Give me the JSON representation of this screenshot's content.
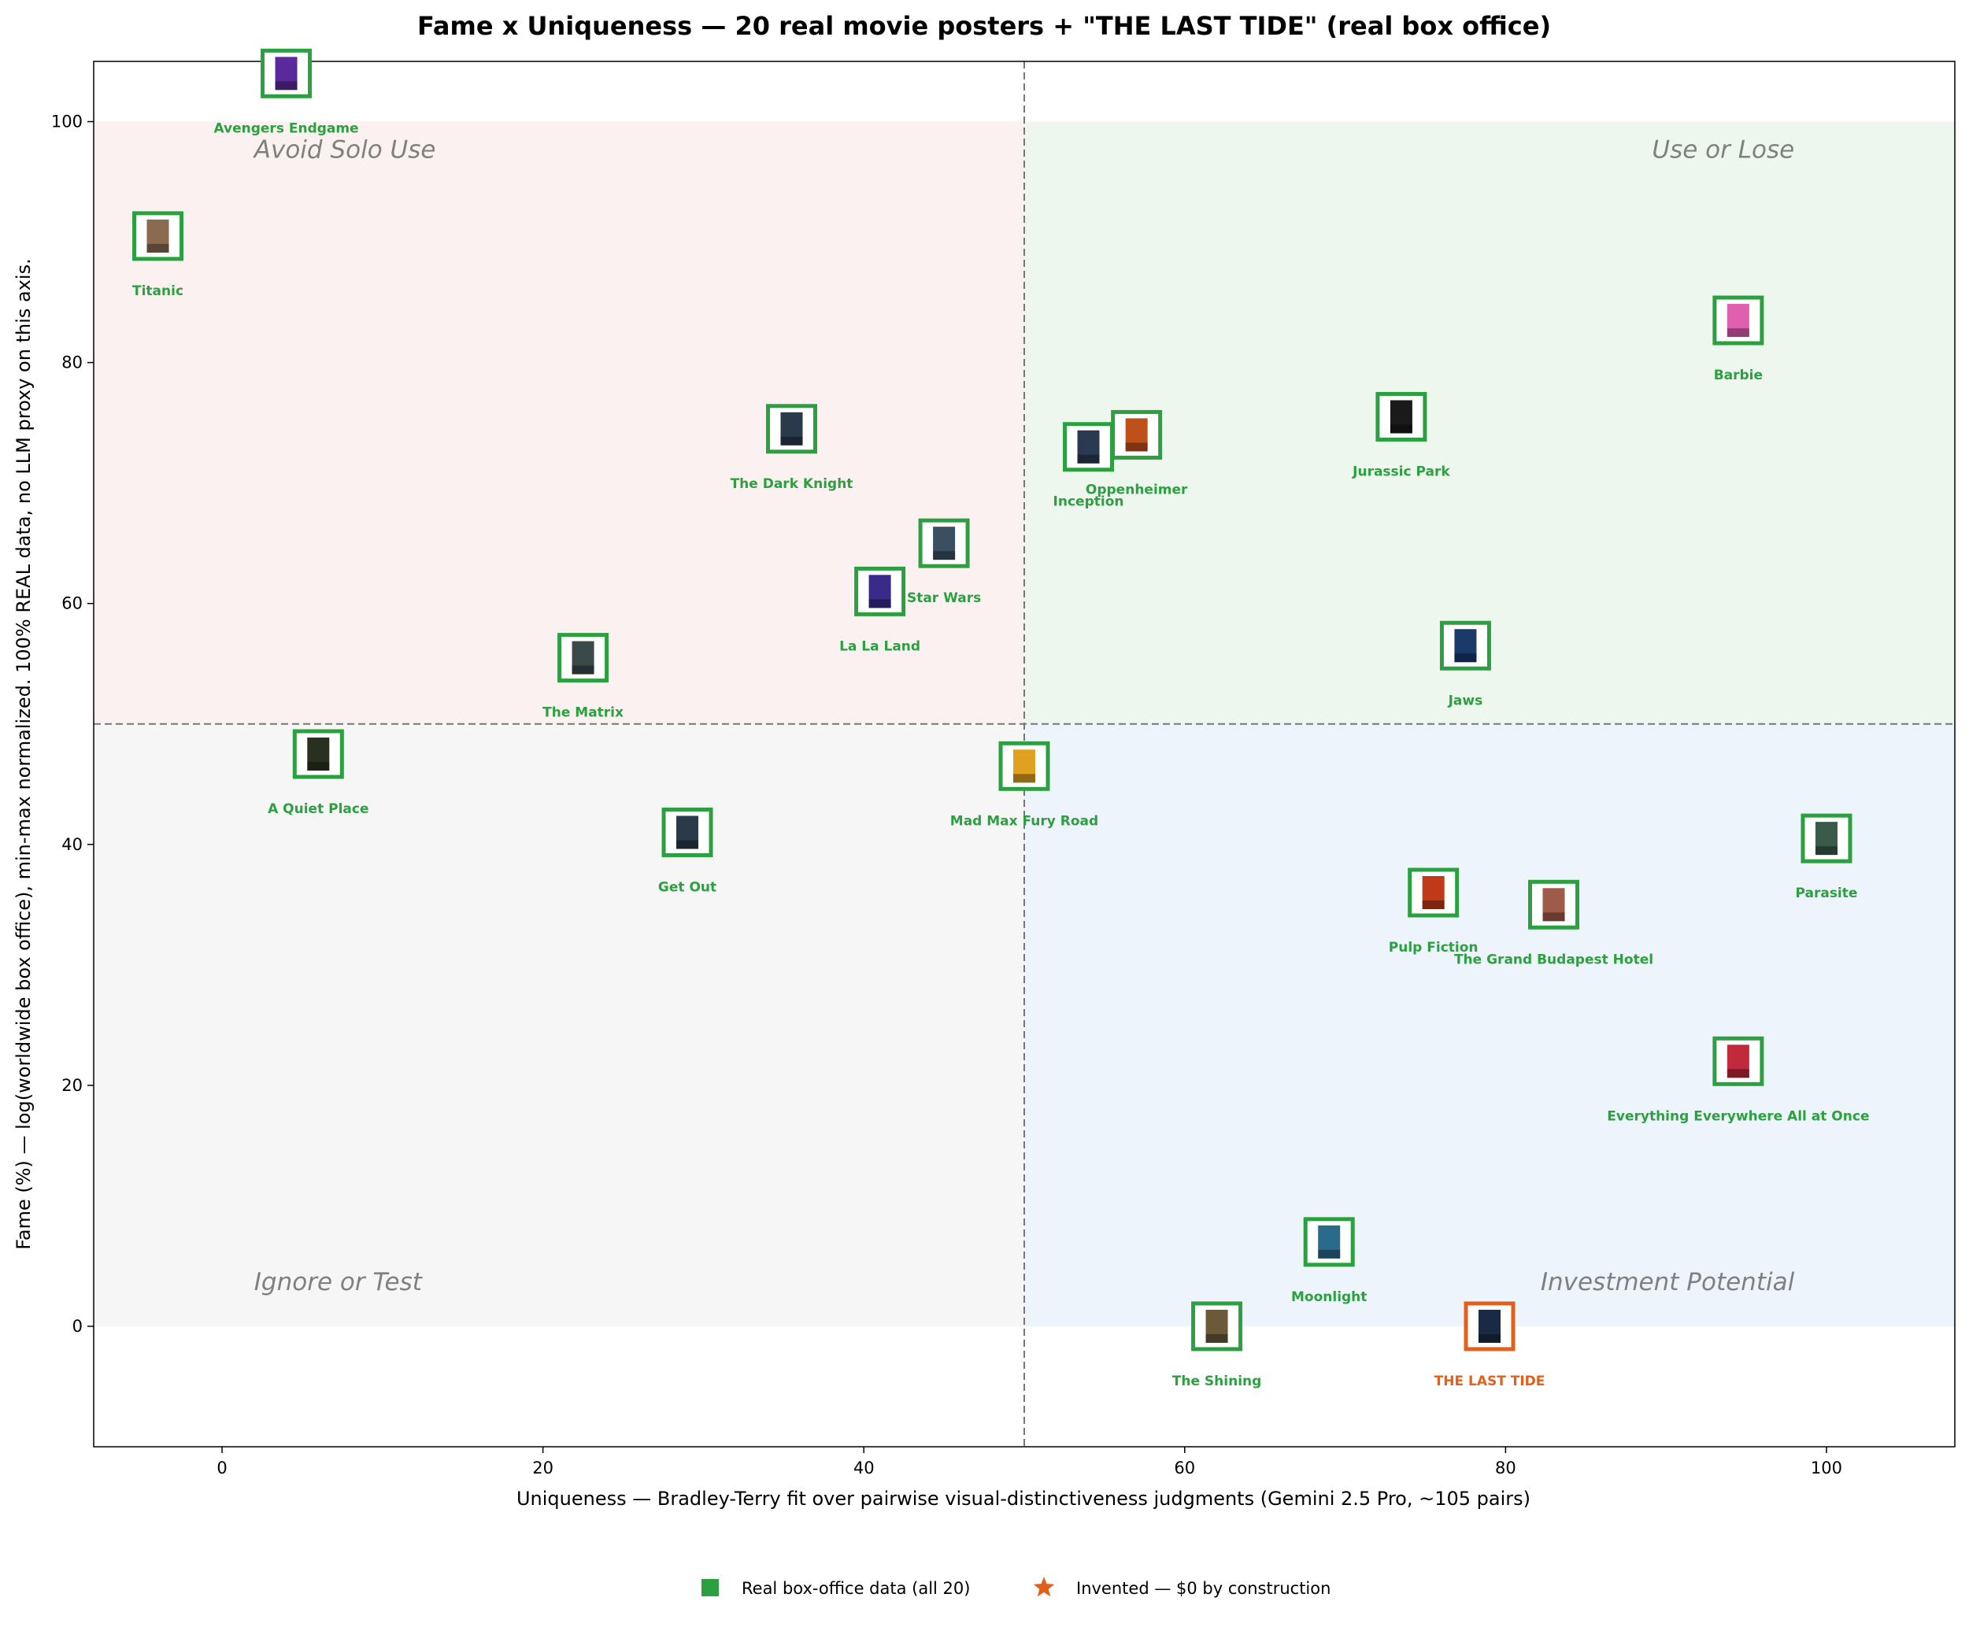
{
  "chart_data": {
    "type": "scatter",
    "title": "Fame x Uniqueness — 20 real movie posters + \"THE LAST TIDE\" (real box office)",
    "xlabel": "Uniqueness — Bradley-Terry fit over pairwise visual-distinctiveness judgments (Gemini 2.5 Pro, ~105 pairs)",
    "ylabel": "Fame (%) — log(worldwide box office), min-max normalized. 100% REAL data, no LLM proxy on this axis.",
    "xlim": [
      -8,
      108
    ],
    "ylim": [
      -10,
      105
    ],
    "xticks": [
      0,
      20,
      40,
      60,
      80,
      100
    ],
    "yticks": [
      0,
      20,
      40,
      60,
      80,
      100
    ],
    "grid": false,
    "thresholds": {
      "x": 50,
      "y": 50
    },
    "quadrants": [
      {
        "name": "Avoid Solo Use",
        "color": "#fbf1f0"
      },
      {
        "name": "Use or Lose",
        "color": "#eef7ee"
      },
      {
        "name": "Ignore or Test",
        "color": "#f6f6f6"
      },
      {
        "name": "Investment Potential",
        "color": "#eef4fc"
      }
    ],
    "colors": {
      "real": "#2ca040",
      "invented": "#e0601c"
    },
    "points": [
      {
        "name": "Avengers Endgame",
        "x": 4,
        "y": 104,
        "kind": "real",
        "poster": "#5a2a9a"
      },
      {
        "name": "Titanic",
        "x": -4,
        "y": 90.5,
        "kind": "real",
        "poster": "#8a6a50"
      },
      {
        "name": "The Dark Knight",
        "x": 35.5,
        "y": 74.5,
        "kind": "real",
        "poster": "#2a3a4a"
      },
      {
        "name": "Star Wars",
        "x": 45,
        "y": 65,
        "kind": "real",
        "poster": "#3a5060"
      },
      {
        "name": "La La Land",
        "x": 41,
        "y": 61,
        "kind": "real",
        "poster": "#3a2a8a"
      },
      {
        "name": "The Matrix",
        "x": 22.5,
        "y": 55.5,
        "kind": "real",
        "poster": "#3a4a4a"
      },
      {
        "name": "Inception",
        "x": 54,
        "y": 73,
        "kind": "real",
        "poster": "#2a3a50"
      },
      {
        "name": "Oppenheimer",
        "x": 57,
        "y": 74,
        "kind": "real",
        "poster": "#c0501a"
      },
      {
        "name": "Jurassic Park",
        "x": 73.5,
        "y": 75.5,
        "kind": "real",
        "poster": "#1a1a1a"
      },
      {
        "name": "Barbie",
        "x": 94.5,
        "y": 83.5,
        "kind": "real",
        "poster": "#e060b0"
      },
      {
        "name": "Jaws",
        "x": 77.5,
        "y": 56.5,
        "kind": "real",
        "poster": "#1a3a6a"
      },
      {
        "name": "A Quiet Place",
        "x": 6,
        "y": 47.5,
        "kind": "real",
        "poster": "#2a3020"
      },
      {
        "name": "Get Out",
        "x": 29,
        "y": 41,
        "kind": "real",
        "poster": "#2a3a4a"
      },
      {
        "name": "Mad Max Fury Road",
        "x": 50,
        "y": 46.5,
        "kind": "real",
        "poster": "#e0a020"
      },
      {
        "name": "Parasite",
        "x": 100,
        "y": 40.5,
        "kind": "real",
        "poster": "#3a5a4a"
      },
      {
        "name": "Pulp Fiction",
        "x": 75.5,
        "y": 36,
        "kind": "real",
        "poster": "#c03a1a"
      },
      {
        "name": "The Grand Budapest Hotel",
        "x": 83,
        "y": 35,
        "kind": "real",
        "poster": "#a05a4a"
      },
      {
        "name": "Everything Everywhere All at Once",
        "x": 94.5,
        "y": 22,
        "kind": "real",
        "poster": "#c02a3a"
      },
      {
        "name": "Moonlight",
        "x": 69,
        "y": 7,
        "kind": "real",
        "poster": "#2a6a8a"
      },
      {
        "name": "The Shining",
        "x": 62,
        "y": 0,
        "kind": "real",
        "poster": "#6a5a3a"
      },
      {
        "name": "THE LAST TIDE",
        "x": 79,
        "y": 0,
        "kind": "invented",
        "poster": "#1a2a44"
      }
    ],
    "legend": {
      "placement": "bottom-center",
      "entries": [
        {
          "label": "Real box-office data (all 20)",
          "marker": "square",
          "color": "#2ca040"
        },
        {
          "label": "Invented — $0 by construction",
          "marker": "star",
          "color": "#e0601c"
        }
      ]
    }
  }
}
